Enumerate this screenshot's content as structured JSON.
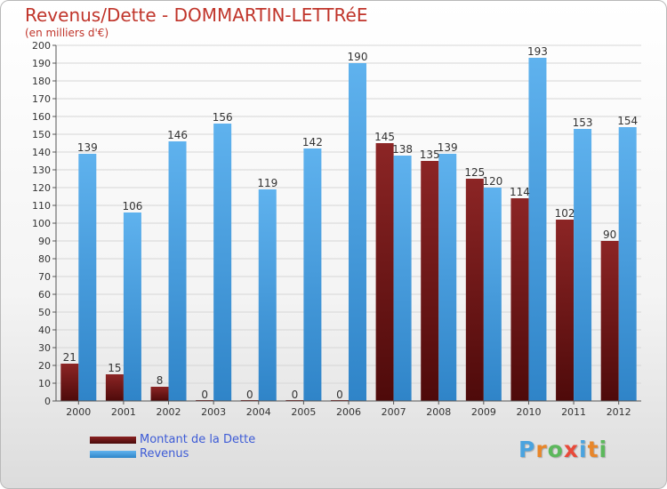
{
  "title": "Revenus/Dette - DOMMARTIN-LETTRéE",
  "subtitle": "(en milliers d'€)",
  "legend": [
    {
      "label": "Montant de la Dette",
      "color": "#7a1c1c"
    },
    {
      "label": "Revenus",
      "color": "#4fa3e3"
    }
  ],
  "logo": {
    "letters": [
      "P",
      "r",
      "o",
      "x",
      "i",
      "t",
      "i"
    ],
    "colors": [
      "#4aa3df",
      "#e8862a",
      "#5cb85c",
      "#e84a3a",
      "#4aa3df",
      "#e8862a",
      "#5cb85c"
    ]
  },
  "chart_data": {
    "type": "bar",
    "categories": [
      "2000",
      "2001",
      "2002",
      "2003",
      "2004",
      "2005",
      "2006",
      "2007",
      "2008",
      "2009",
      "2010",
      "2011",
      "2012"
    ],
    "series": [
      {
        "name": "Montant de la Dette",
        "color": "#7a1c1c",
        "values": [
          21,
          15,
          8,
          0,
          0,
          0,
          0,
          145,
          135,
          125,
          114,
          102,
          90
        ]
      },
      {
        "name": "Revenus",
        "color": "#4fa3e3",
        "values": [
          139,
          106,
          146,
          156,
          119,
          142,
          190,
          138,
          139,
          120,
          193,
          153,
          154
        ]
      }
    ],
    "ylim": [
      0,
      200
    ],
    "yticks": [
      "0",
      "10",
      "20",
      "30",
      "40",
      "50",
      "60",
      "70",
      "80",
      "90",
      "100",
      "110",
      "120",
      "130",
      "140",
      "150",
      "160",
      "170",
      "180",
      "190",
      "200"
    ],
    "grid": true
  }
}
